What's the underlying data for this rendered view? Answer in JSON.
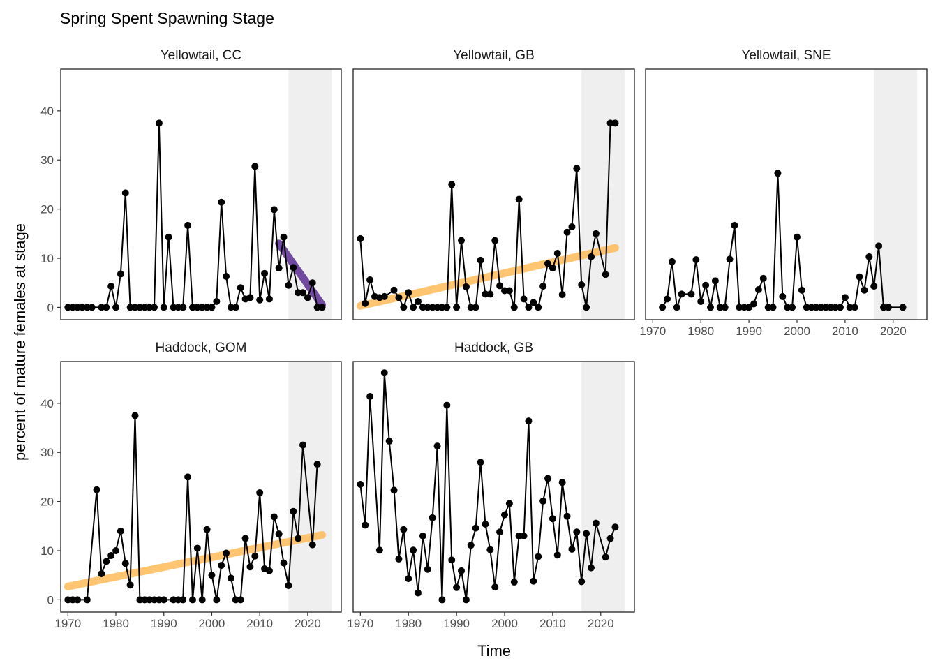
{
  "chart_data": {
    "type": "line",
    "title": "Spring Spent Spawning Stage",
    "xlabel": "Time",
    "ylabel": "percent of mature females at stage",
    "xlim": [
      1968.5,
      2027
    ],
    "ylim": [
      -2.5,
      48.5
    ],
    "x_ticks": [
      1970,
      1980,
      1990,
      2000,
      2010,
      2020
    ],
    "y_ticks": [
      0,
      10,
      20,
      30,
      40
    ],
    "shaded_region": [
      2016,
      2025
    ],
    "colors": {
      "line": "#000000",
      "shade": "#efefef",
      "increase_trend": "#ffb74d",
      "decrease_trend": "#5b2c8f"
    },
    "panels": [
      {
        "name": "Yellowtail, CC",
        "x": [
          1970,
          1971,
          1972,
          1973,
          1974,
          1975,
          1977,
          1978,
          1979,
          1980,
          1981,
          1982,
          1983,
          1984,
          1985,
          1986,
          1987,
          1988,
          1989,
          1990,
          1991,
          1992,
          1993,
          1994,
          1995,
          1996,
          1997,
          1998,
          1999,
          2000,
          2001,
          2002,
          2003,
          2004,
          2005,
          2006,
          2007,
          2008,
          2009,
          2010,
          2011,
          2012,
          2013,
          2014,
          2015,
          2016,
          2017,
          2018,
          2019,
          2020,
          2021,
          2022,
          2023
        ],
        "y": [
          0,
          0,
          0,
          0,
          0,
          0,
          0,
          0,
          4.3,
          0,
          6.8,
          23.3,
          0,
          0,
          0,
          0,
          0,
          0,
          37.5,
          0,
          14.3,
          0,
          0,
          0,
          16.7,
          0,
          0,
          0,
          0,
          0,
          1.2,
          21.4,
          6.3,
          0,
          0,
          4,
          1.7,
          2,
          28.7,
          1.5,
          6.9,
          1.7,
          19.9,
          8,
          14.3,
          4.5,
          8.1,
          3,
          3,
          2,
          5,
          0,
          0
        ],
        "trend": {
          "direction": "decrease",
          "x": [
            2014,
            2023
          ],
          "y": [
            13,
            0.5
          ]
        }
      },
      {
        "name": "Yellowtail, GB",
        "x": [
          1970,
          1971,
          1972,
          1973,
          1974,
          1975,
          1977,
          1978,
          1979,
          1980,
          1981,
          1982,
          1983,
          1984,
          1985,
          1986,
          1987,
          1988,
          1989,
          1990,
          1991,
          1992,
          1993,
          1994,
          1995,
          1996,
          1997,
          1998,
          1999,
          2000,
          2001,
          2002,
          2003,
          2004,
          2005,
          2006,
          2007,
          2008,
          2009,
          2010,
          2011,
          2012,
          2013,
          2014,
          2015,
          2016,
          2017,
          2018,
          2019,
          2021,
          2022,
          2023
        ],
        "y": [
          14,
          0.8,
          5.6,
          2.2,
          2,
          2.2,
          3.5,
          2,
          0,
          3,
          0,
          1.2,
          0,
          0,
          0,
          0,
          0,
          0,
          25,
          0,
          13.6,
          4.2,
          0,
          0,
          9.6,
          2.7,
          2.7,
          13.6,
          4.4,
          3.4,
          3.4,
          0,
          22,
          1.7,
          0,
          1,
          0,
          4.3,
          8.9,
          8,
          11,
          2.6,
          15.3,
          16.4,
          28.3,
          4.6,
          0,
          10.3,
          15,
          6.7,
          37.5,
          37.5
        ],
        "trend": {
          "direction": "increase",
          "x": [
            1970,
            2023
          ],
          "y": [
            0.3,
            12.1
          ]
        }
      },
      {
        "name": "Yellowtail, SNE",
        "x": [
          1972,
          1973,
          1974,
          1975,
          1976,
          1978,
          1979,
          1980,
          1981,
          1982,
          1983,
          1984,
          1985,
          1986,
          1987,
          1988,
          1989,
          1990,
          1991,
          1992,
          1993,
          1994,
          1995,
          1996,
          1997,
          1998,
          1999,
          2000,
          2001,
          2002,
          2003,
          2004,
          2005,
          2006,
          2007,
          2008,
          2009,
          2010,
          2011,
          2012,
          2013,
          2014,
          2015,
          2016,
          2017,
          2018,
          2019,
          2022
        ],
        "y": [
          0,
          1.7,
          9.3,
          0,
          2.7,
          2.7,
          9.7,
          1.2,
          4.5,
          0,
          5.4,
          0,
          0,
          9.8,
          16.7,
          0,
          0,
          0,
          0.7,
          3.6,
          5.9,
          0,
          0,
          27.3,
          2.2,
          0,
          0,
          14.3,
          3.5,
          0,
          0,
          0,
          0,
          0,
          0,
          0,
          0,
          2,
          0,
          0,
          6.2,
          3.5,
          10.3,
          4.3,
          12.5,
          0,
          0,
          0
        ],
        "trend": null
      },
      {
        "name": "Haddock, GOM",
        "x": [
          1970,
          1971,
          1972,
          1974,
          1976,
          1977,
          1978,
          1979,
          1980,
          1981,
          1982,
          1983,
          1984,
          1985,
          1986,
          1987,
          1988,
          1989,
          1990,
          1992,
          1993,
          1994,
          1995,
          1996,
          1997,
          1998,
          1999,
          2000,
          2001,
          2002,
          2003,
          2004,
          2005,
          2006,
          2007,
          2008,
          2009,
          2010,
          2011,
          2012,
          2013,
          2014,
          2015,
          2016,
          2017,
          2018,
          2019,
          2021,
          2022
        ],
        "y": [
          0,
          0,
          0,
          0,
          22.4,
          5.3,
          7.8,
          9,
          10,
          14,
          7.4,
          3,
          37.5,
          0,
          0,
          0,
          0,
          0,
          0,
          0,
          0,
          0,
          25,
          0,
          10.5,
          0,
          14.3,
          5,
          0,
          7,
          9.5,
          4.4,
          0,
          0,
          12.5,
          6.7,
          8.9,
          21.8,
          6.3,
          5.9,
          16.9,
          13.4,
          7.5,
          2.9,
          18,
          12.5,
          31.5,
          11.2,
          27.6
        ],
        "trend": {
          "direction": "increase",
          "x": [
            1970,
            2023
          ],
          "y": [
            2.7,
            13.2
          ]
        }
      },
      {
        "name": "Haddock, GB",
        "x": [
          1970,
          1971,
          1972,
          1974,
          1975,
          1976,
          1977,
          1978,
          1979,
          1980,
          1981,
          1982,
          1983,
          1984,
          1985,
          1986,
          1987,
          1988,
          1989,
          1990,
          1991,
          1992,
          1993,
          1994,
          1995,
          1996,
          1997,
          1998,
          1999,
          2000,
          2001,
          2002,
          2003,
          2004,
          2005,
          2006,
          2007,
          2008,
          2009,
          2010,
          2011,
          2012,
          2013,
          2014,
          2015,
          2016,
          2017,
          2018,
          2019,
          2021,
          2022,
          2023
        ],
        "y": [
          23.5,
          15.2,
          41.4,
          10.1,
          46.2,
          32.3,
          22.3,
          8.3,
          14.3,
          4.3,
          10.1,
          1.4,
          13,
          6.2,
          16.7,
          31.3,
          0,
          39.6,
          8.1,
          2.5,
          5.9,
          0,
          11.1,
          14.6,
          28,
          15.4,
          10.2,
          2.6,
          13.8,
          17.3,
          19.6,
          3.6,
          13,
          13,
          36.4,
          3.8,
          8.8,
          20.1,
          24.7,
          16.5,
          9.1,
          23.9,
          17,
          10.3,
          13.8,
          3.7,
          13.5,
          6.5,
          15.6,
          8.7,
          12.5,
          14.8
        ],
        "trend": null
      }
    ]
  }
}
